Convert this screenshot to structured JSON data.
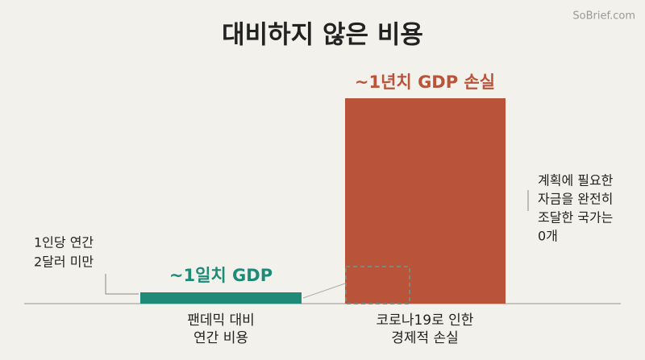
{
  "title": "대비하지 않은 비용",
  "watermark": "SoBrief.com",
  "bars": [
    {
      "label": "~1일치 GDP",
      "caption": [
        "팬데믹 대비",
        "연간 비용"
      ]
    },
    {
      "label": "~1년치 GDP 손실",
      "caption": [
        "코로나19로 인한",
        "경제적 손실"
      ]
    }
  ],
  "annotations": [
    {
      "lines": [
        "1인당 연간",
        "2달러 미만"
      ]
    },
    {
      "lines": [
        "계획에 필요한",
        "자금을 완전히",
        "조달한 국가는",
        "0개"
      ]
    }
  ]
}
